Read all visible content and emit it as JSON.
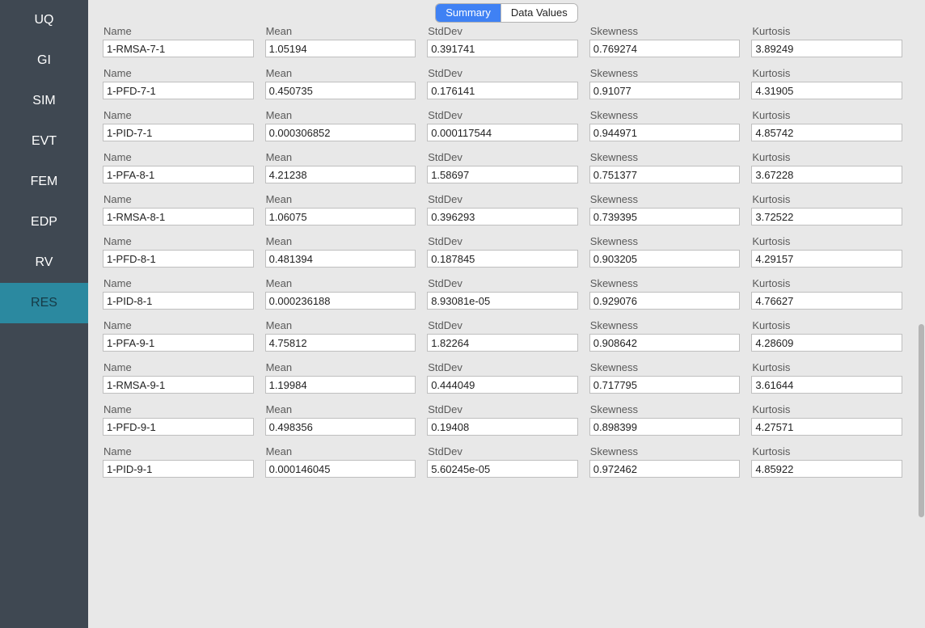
{
  "sidebar": {
    "items": [
      {
        "label": "UQ",
        "active": false
      },
      {
        "label": "GI",
        "active": false
      },
      {
        "label": "SIM",
        "active": false
      },
      {
        "label": "EVT",
        "active": false
      },
      {
        "label": "FEM",
        "active": false
      },
      {
        "label": "EDP",
        "active": false
      },
      {
        "label": "RV",
        "active": false
      },
      {
        "label": "RES",
        "active": true
      }
    ]
  },
  "tabs": {
    "summary": "Summary",
    "data_values": "Data Values",
    "active": "summary"
  },
  "columns": [
    "Name",
    "Mean",
    "StdDev",
    "Skewness",
    "Kurtosis"
  ],
  "rows": [
    {
      "name": "1-RMSA-7-1",
      "mean": "1.05194",
      "stddev": "0.391741",
      "skewness": "0.769274",
      "kurtosis": "3.89249"
    },
    {
      "name": "1-PFD-7-1",
      "mean": "0.450735",
      "stddev": "0.176141",
      "skewness": "0.91077",
      "kurtosis": "4.31905"
    },
    {
      "name": "1-PID-7-1",
      "mean": "0.000306852",
      "stddev": "0.000117544",
      "skewness": "0.944971",
      "kurtosis": "4.85742"
    },
    {
      "name": "1-PFA-8-1",
      "mean": "4.21238",
      "stddev": "1.58697",
      "skewness": "0.751377",
      "kurtosis": "3.67228"
    },
    {
      "name": "1-RMSA-8-1",
      "mean": "1.06075",
      "stddev": "0.396293",
      "skewness": "0.739395",
      "kurtosis": "3.72522"
    },
    {
      "name": "1-PFD-8-1",
      "mean": "0.481394",
      "stddev": "0.187845",
      "skewness": "0.903205",
      "kurtosis": "4.29157"
    },
    {
      "name": "1-PID-8-1",
      "mean": "0.000236188",
      "stddev": "8.93081e-05",
      "skewness": "0.929076",
      "kurtosis": "4.76627"
    },
    {
      "name": "1-PFA-9-1",
      "mean": "4.75812",
      "stddev": "1.82264",
      "skewness": "0.908642",
      "kurtosis": "4.28609"
    },
    {
      "name": "1-RMSA-9-1",
      "mean": "1.19984",
      "stddev": "0.444049",
      "skewness": "0.717795",
      "kurtosis": "3.61644"
    },
    {
      "name": "1-PFD-9-1",
      "mean": "0.498356",
      "stddev": "0.19408",
      "skewness": "0.898399",
      "kurtosis": "4.27571"
    },
    {
      "name": "1-PID-9-1",
      "mean": "0.000146045",
      "stddev": "5.60245e-05",
      "skewness": "0.972462",
      "kurtosis": "4.85922"
    }
  ],
  "colors": {
    "sidebar_bg": "#3f4852",
    "sidebar_active_bg": "#2b89a0",
    "sidebar_text": "#ffffff",
    "sidebar_active_text": "#163a46",
    "tab_active_bg": "#3f81f4",
    "tab_bg": "#ffffff",
    "content_bg": "#e8e8e8",
    "input_bg": "#ffffff",
    "input_border": "#bfbfbf",
    "label_color": "#5a5a5a"
  }
}
